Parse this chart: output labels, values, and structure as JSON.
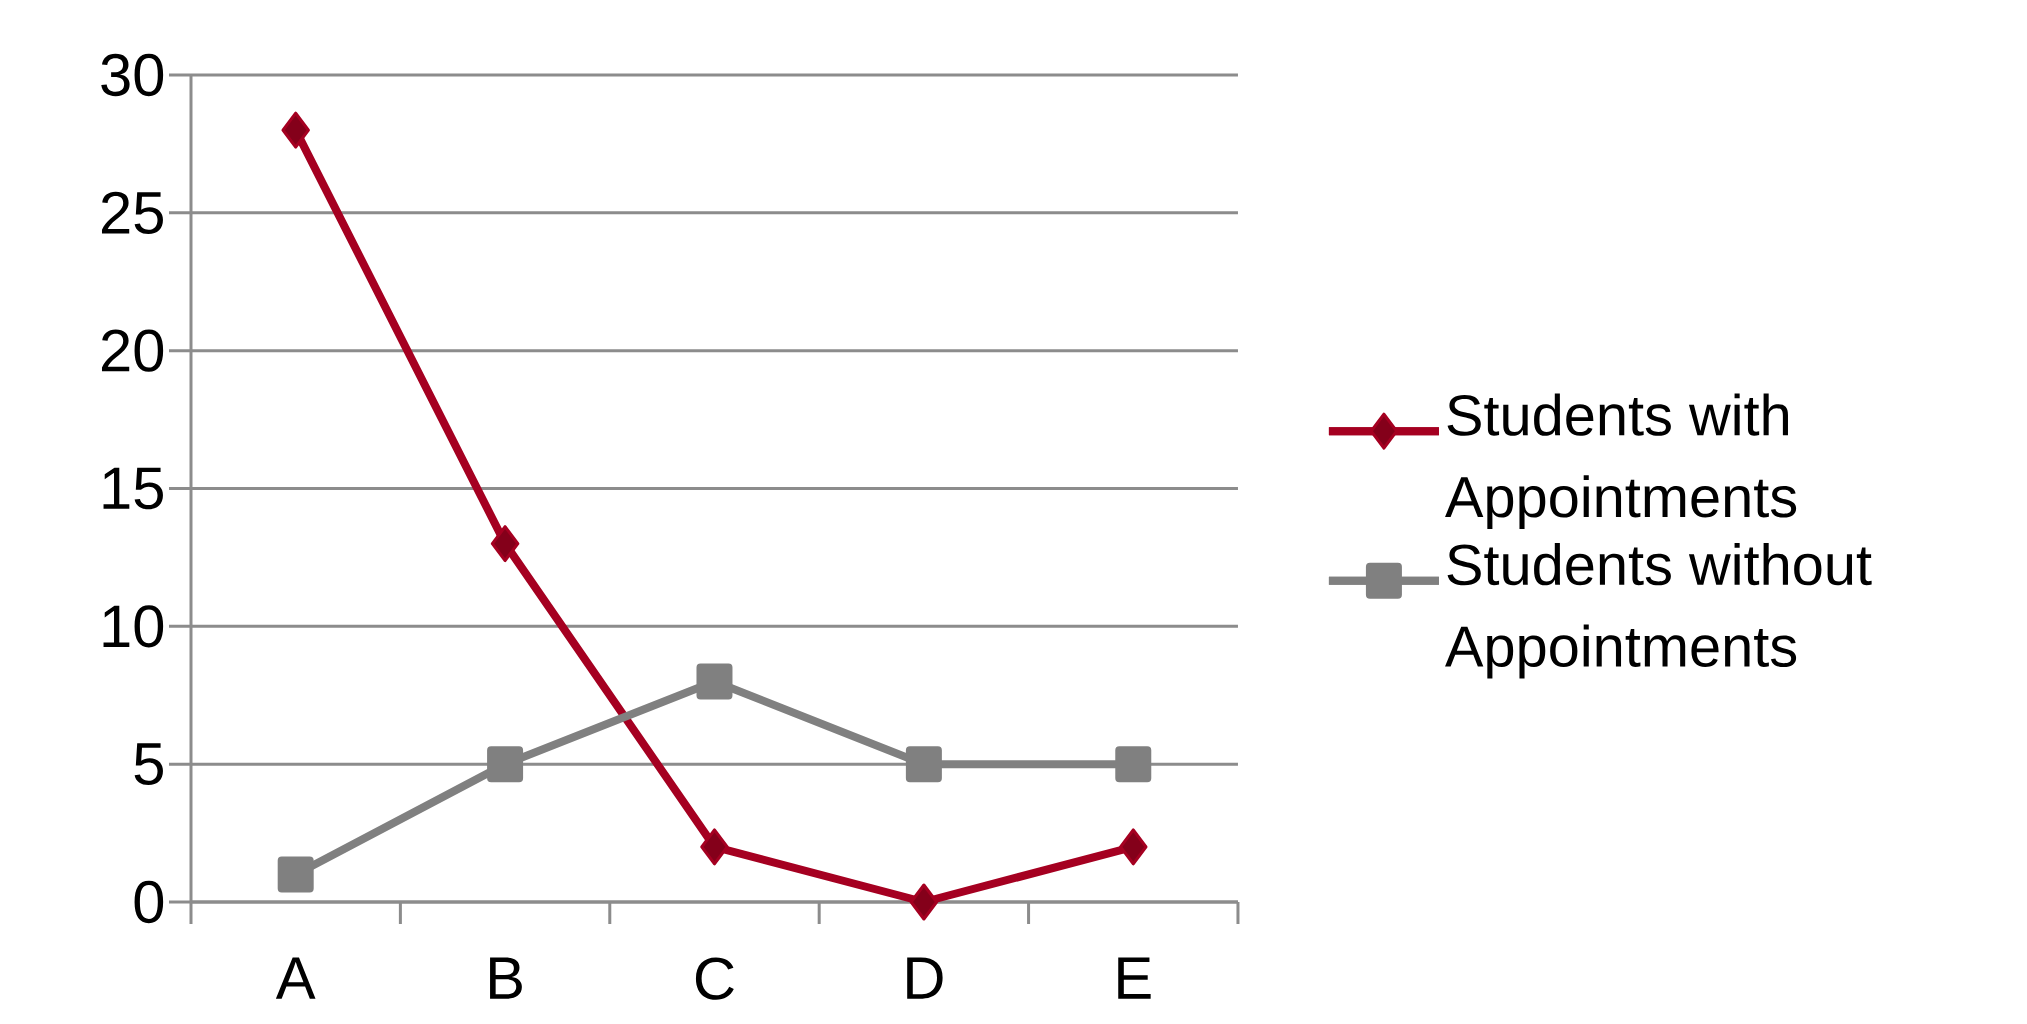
{
  "chart_data": {
    "type": "line",
    "categories": [
      "A",
      "B",
      "C",
      "D",
      "E"
    ],
    "series": [
      {
        "name": "Students with Appointments",
        "color": "#a50021",
        "marker": "diamond",
        "values": [
          28,
          13,
          2,
          0,
          2
        ]
      },
      {
        "name": "Students without Appointments",
        "color": "#808080",
        "marker": "square",
        "values": [
          1,
          5,
          8,
          5,
          5
        ]
      }
    ],
    "ylim": [
      0,
      30
    ],
    "yticks": [
      0,
      5,
      10,
      15,
      20,
      25,
      30
    ],
    "grid": "y",
    "legend": "right",
    "line_style": "solid"
  }
}
